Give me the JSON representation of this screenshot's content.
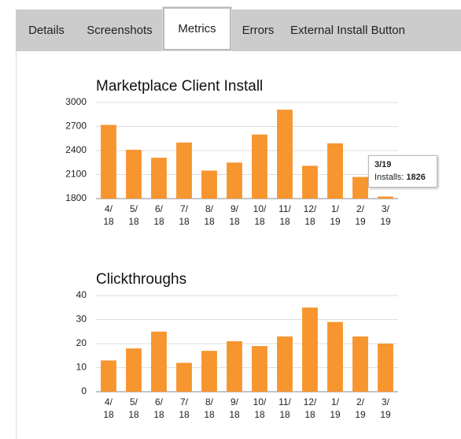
{
  "tabs": [
    "Details",
    "Screenshots",
    "Metrics",
    "Errors",
    "External Install Button"
  ],
  "active_tab": 2,
  "chart_data": [
    {
      "type": "bar",
      "title": "Marketplace Client Install",
      "color": "#f7952f",
      "categories": [
        "4/ 18",
        "5/ 18",
        "6/ 18",
        "7/ 18",
        "8/ 18",
        "9/ 18",
        "10/ 18",
        "11/ 18",
        "12/ 18",
        "1/ 19",
        "2/ 19",
        "3/ 19"
      ],
      "values": [
        2720,
        2410,
        2310,
        2500,
        2150,
        2250,
        2600,
        2910,
        2210,
        2490,
        2070,
        1826
      ],
      "ylim": [
        1800,
        3000
      ],
      "yticks": [
        1800,
        2100,
        2400,
        2700,
        3000
      ],
      "grid": true,
      "tooltip": {
        "title": "3/19",
        "label": "Installs:",
        "value": 1826
      }
    },
    {
      "type": "bar",
      "title": "Clickthroughs",
      "color": "#f7952f",
      "categories": [
        "4/ 18",
        "5/ 18",
        "6/ 18",
        "7/ 18",
        "8/ 18",
        "9/ 18",
        "10/ 18",
        "11/ 18",
        "12/ 18",
        "1/ 19",
        "2/ 19",
        "3/ 19"
      ],
      "values": [
        13,
        18,
        25,
        12,
        17,
        21,
        19,
        23,
        35,
        29,
        23,
        20
      ],
      "ylim": [
        0,
        40
      ],
      "yticks": [
        0,
        10,
        20,
        30,
        40
      ],
      "grid": true
    }
  ]
}
